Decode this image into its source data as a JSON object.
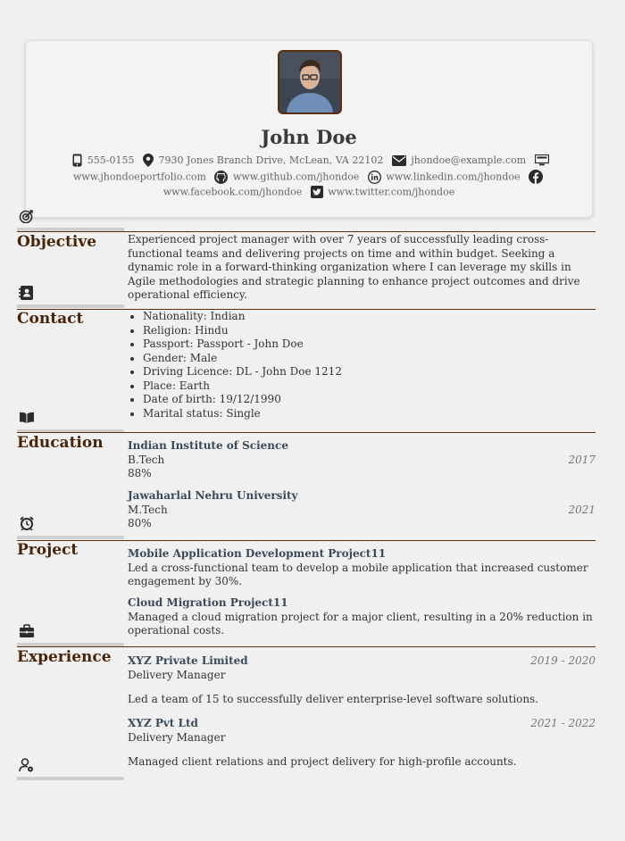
{
  "header": {
    "name": "John Doe",
    "phone": "555-0155",
    "address": "7930 Jones Branch Drive, McLean, VA 22102",
    "email": "jhondoe@example.com",
    "portfolio": "www.jhondoeportfolio.com",
    "github": "www.github.com/jhondoe",
    "linkedin": "www.linkedin.com/jhondoe",
    "facebook": "www.facebook.com/jhondoe",
    "twitter": "www.twitter.com/jhondoe"
  },
  "objective": {
    "title": "Objective",
    "text": "Experienced project manager with over 7 years of successfully leading cross-functional teams and delivering projects on time and within budget. Seeking a dynamic role in a forward-thinking organization where I can leverage my skills in Agile methodologies and strategic planning to enhance project outcomes and drive operational efficiency."
  },
  "contact": {
    "title": "Contact",
    "items": [
      "Nationality: Indian",
      "Religion: Hindu",
      "Passport: Passport - John Doe",
      "Gender: Male",
      "Driving Licence: DL - John Doe 1212",
      "Place: Earth",
      "Date of birth: 19/12/1990",
      "Marital status: Single"
    ]
  },
  "education": {
    "title": "Education",
    "entries": [
      {
        "school": "Indian Institute of Science",
        "degree": "B.Tech",
        "year": "2017",
        "score": "88%"
      },
      {
        "school": "Jawaharlal Nehru University",
        "degree": "M.Tech",
        "year": "2021",
        "score": "80%"
      }
    ]
  },
  "project": {
    "title": "Project",
    "entries": [
      {
        "name": "Mobile Application Development Project11",
        "desc": "Led a cross-functional team to develop a mobile application that increased customer engagement by 30%."
      },
      {
        "name": "Cloud Migration Project11",
        "desc": "Managed a cloud migration project for a major client, resulting in a 20% reduction in operational costs."
      }
    ]
  },
  "experience": {
    "title": "Experience",
    "entries": [
      {
        "company": "XYZ Private Limited",
        "role": "Delivery Manager",
        "period": "2019 - 2020",
        "desc": "Led a team of 15 to successfully deliver enterprise-level software solutions."
      },
      {
        "company": "XYZ Pvt Ltd",
        "role": "Delivery Manager",
        "period": "2021 - 2022",
        "desc": "Managed client relations and project delivery for high-profile accounts."
      }
    ]
  },
  "colors": {
    "accent": "#4a2409",
    "rule": "#5a2e0e",
    "bar": "#cfcfcf"
  }
}
